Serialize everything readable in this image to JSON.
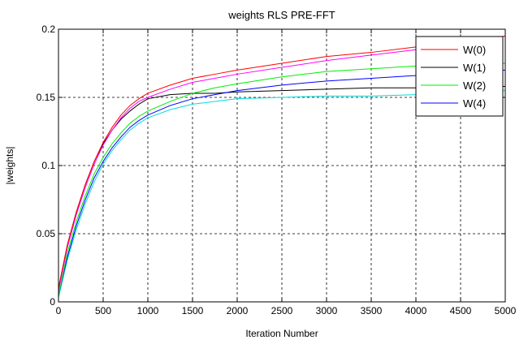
{
  "chart_data": {
    "type": "line",
    "title": "weights RLS PRE-FFT",
    "xlabel": "Iteration Number",
    "ylabel": "|weights|",
    "xlim": [
      0,
      5000
    ],
    "ylim": [
      0,
      0.2
    ],
    "xticks": [
      0,
      500,
      1000,
      1500,
      2000,
      2500,
      3000,
      3500,
      4000,
      4500,
      5000
    ],
    "yticks": [
      0,
      0.05,
      0.1,
      0.15,
      0.2
    ],
    "xtick_labels": [
      "0",
      "500",
      "1000",
      "1500",
      "2000",
      "2500",
      "3000",
      "3500",
      "4000",
      "4500",
      "5000"
    ],
    "ytick_labels": [
      "0",
      "0.05",
      "0.1",
      "0.15",
      "0.2"
    ],
    "grid": true,
    "legend_position": "top-right",
    "x": [
      0,
      100,
      200,
      300,
      400,
      500,
      600,
      700,
      800,
      900,
      1000,
      1250,
      1500,
      1750,
      2000,
      2500,
      3000,
      3500,
      4000,
      4500,
      5000
    ],
    "series": [
      {
        "name": "W(0)",
        "color": "#ff0000",
        "in_legend": true,
        "values": [
          0.01,
          0.042,
          0.066,
          0.086,
          0.103,
          0.117,
          0.128,
          0.137,
          0.144,
          0.149,
          0.153,
          0.159,
          0.164,
          0.167,
          0.17,
          0.175,
          0.18,
          0.183,
          0.187,
          0.19,
          0.195
        ]
      },
      {
        "name": "W(1)",
        "color": "#000000",
        "in_legend": true,
        "values": [
          0.01,
          0.042,
          0.066,
          0.086,
          0.103,
          0.116,
          0.126,
          0.134,
          0.14,
          0.145,
          0.149,
          0.152,
          0.153,
          0.153,
          0.154,
          0.155,
          0.156,
          0.157,
          0.157,
          0.158,
          0.158
        ]
      },
      {
        "name": "W(2)",
        "color": "#00ee00",
        "in_legend": true,
        "values": [
          0.005,
          0.036,
          0.059,
          0.078,
          0.094,
          0.106,
          0.116,
          0.124,
          0.131,
          0.136,
          0.14,
          0.147,
          0.153,
          0.157,
          0.16,
          0.165,
          0.169,
          0.171,
          0.173,
          0.174,
          0.175
        ]
      },
      {
        "name": "W(4)",
        "color": "#0000ff",
        "in_legend": true,
        "values": [
          0.005,
          0.033,
          0.056,
          0.075,
          0.091,
          0.103,
          0.113,
          0.121,
          0.128,
          0.133,
          0.137,
          0.144,
          0.149,
          0.152,
          0.155,
          0.159,
          0.162,
          0.164,
          0.166,
          0.168,
          0.17
        ]
      },
      {
        "name": "",
        "color": "#ff00ff",
        "in_legend": false,
        "values": [
          0.008,
          0.04,
          0.064,
          0.084,
          0.101,
          0.115,
          0.126,
          0.135,
          0.142,
          0.147,
          0.15,
          0.156,
          0.161,
          0.164,
          0.167,
          0.172,
          0.177,
          0.181,
          0.185,
          0.189,
          0.195
        ]
      },
      {
        "name": "",
        "color": "#00dddd",
        "in_legend": false,
        "values": [
          0.003,
          0.031,
          0.053,
          0.072,
          0.088,
          0.101,
          0.111,
          0.119,
          0.126,
          0.131,
          0.135,
          0.141,
          0.145,
          0.147,
          0.149,
          0.15,
          0.151,
          0.151,
          0.152,
          0.153,
          0.155
        ]
      }
    ]
  }
}
